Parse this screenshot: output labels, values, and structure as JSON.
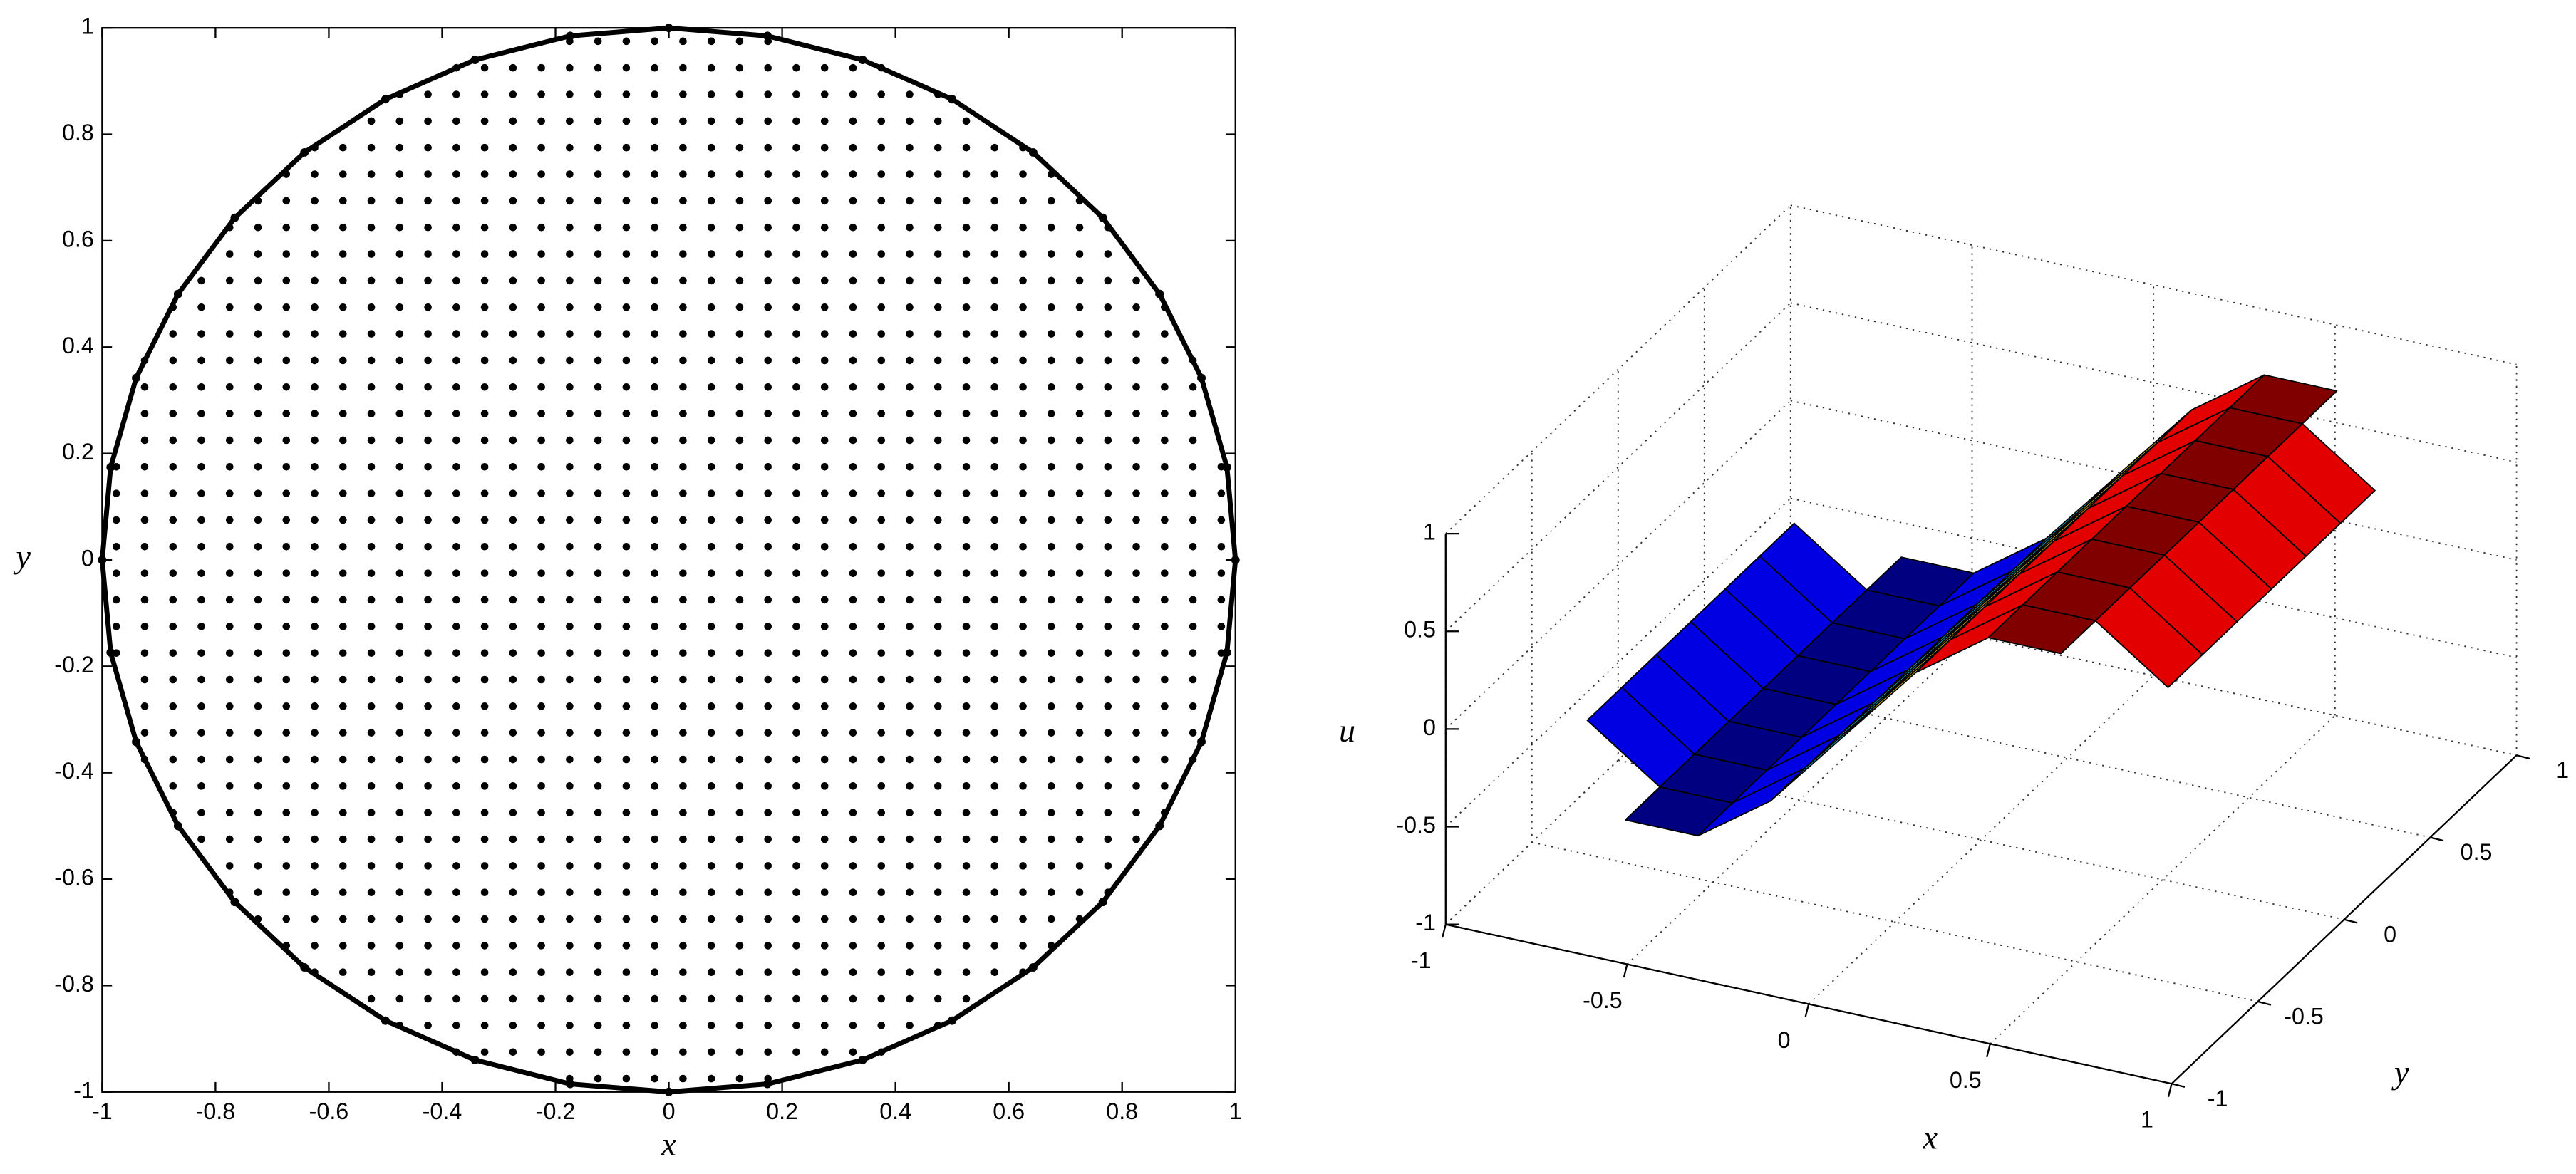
{
  "chart_data": [
    {
      "type": "scatter",
      "x_label": "x",
      "y_label": "y",
      "color": "#000000",
      "xlim": [
        -1,
        1
      ],
      "ylim": [
        -1,
        1
      ],
      "xticks": [
        -1,
        -0.8,
        -0.6,
        -0.4,
        -0.2,
        0,
        0.2,
        0.4,
        0.6,
        0.8,
        1
      ],
      "yticks": [
        -1,
        -0.8,
        -0.6,
        -0.4,
        -0.2,
        0,
        0.2,
        0.4,
        0.6,
        0.8,
        1
      ],
      "clip_radius": 1,
      "grid_points": {
        "x": [
          -0.975,
          -0.925,
          -0.875,
          -0.825,
          -0.775,
          -0.725,
          -0.675,
          -0.625,
          -0.575,
          -0.525,
          -0.475,
          -0.425,
          -0.375,
          -0.325,
          -0.275,
          -0.225,
          -0.175,
          -0.125,
          -0.075,
          -0.025,
          0.025,
          0.075,
          0.125,
          0.175,
          0.225,
          0.275,
          0.325,
          0.375,
          0.425,
          0.475,
          0.525,
          0.575,
          0.625,
          0.675,
          0.725,
          0.775,
          0.825,
          0.875,
          0.925,
          0.975
        ],
        "y": [
          -0.975,
          -0.925,
          -0.875,
          -0.825,
          -0.775,
          -0.725,
          -0.675,
          -0.625,
          -0.575,
          -0.525,
          -0.475,
          -0.425,
          -0.375,
          -0.325,
          -0.275,
          -0.225,
          -0.175,
          -0.125,
          -0.075,
          -0.025,
          0.025,
          0.075,
          0.125,
          0.175,
          0.225,
          0.275,
          0.325,
          0.375,
          0.425,
          0.475,
          0.525,
          0.575,
          0.625,
          0.675,
          0.725,
          0.775,
          0.825,
          0.875,
          0.925,
          0.975
        ]
      },
      "boundary": {
        "x": [
          1,
          0.985,
          0.94,
          0.866,
          0.766,
          0.643,
          0.5,
          0.342,
          0.174,
          0,
          -0.174,
          -0.342,
          -0.5,
          -0.643,
          -0.766,
          -0.866,
          -0.94,
          -0.985,
          -1,
          -0.985,
          -0.94,
          -0.866,
          -0.766,
          -0.643,
          -0.5,
          -0.342,
          -0.174,
          0,
          0.174,
          0.342,
          0.5,
          0.643,
          0.766,
          0.866,
          0.94,
          0.985
        ],
        "y": [
          0,
          0.174,
          0.342,
          0.5,
          0.643,
          0.766,
          0.866,
          0.94,
          0.985,
          1,
          0.985,
          0.94,
          0.866,
          0.766,
          0.643,
          0.5,
          0.342,
          0.174,
          0,
          -0.174,
          -0.342,
          -0.5,
          -0.643,
          -0.766,
          -0.866,
          -0.94,
          -0.985,
          -1,
          -0.985,
          -0.94,
          -0.866,
          -0.766,
          -0.643,
          -0.5,
          -0.342,
          -0.174
        ]
      }
    },
    {
      "type": "surface",
      "x_label": "x",
      "y_label": "y",
      "z_label": "u",
      "colormap": "jet",
      "grid": true,
      "xlim": [
        -1,
        1
      ],
      "ylim": [
        -1,
        1
      ],
      "zlim": [
        -1,
        1
      ],
      "xticks": [
        -1,
        -0.5,
        0,
        0.5,
        1
      ],
      "yticks": [
        -1,
        -0.5,
        0,
        0.5,
        1
      ],
      "zticks": [
        -1,
        -0.5,
        0,
        0.5,
        1
      ],
      "x": [
        -1,
        -0.8,
        -0.6,
        -0.4,
        -0.2,
        0,
        0.2,
        0.4,
        0.6,
        0.8,
        1
      ],
      "y": [
        -1,
        -0.8,
        -0.6,
        -0.4,
        -0.2,
        0,
        0.2,
        0.4,
        0.6,
        0.8,
        1
      ],
      "z": [
        [
          null,
          null,
          null,
          null,
          null,
          0.2,
          null,
          null,
          null,
          null,
          null
        ],
        [
          null,
          null,
          -0.47,
          -0.47,
          -0.21,
          0.2,
          0.61,
          0.87,
          0.87,
          null,
          null
        ],
        [
          null,
          -0.21,
          -0.47,
          -0.47,
          -0.21,
          0.2,
          0.61,
          0.87,
          0.87,
          0.61,
          null
        ],
        [
          null,
          -0.21,
          -0.47,
          -0.47,
          -0.21,
          0.2,
          0.61,
          0.87,
          0.87,
          0.61,
          null
        ],
        [
          null,
          -0.21,
          -0.47,
          -0.47,
          -0.21,
          0.2,
          0.61,
          0.87,
          0.87,
          0.61,
          null
        ],
        [
          0.2,
          -0.21,
          -0.47,
          -0.47,
          -0.21,
          0.2,
          0.61,
          0.87,
          0.87,
          0.61,
          0.2
        ],
        [
          null,
          -0.21,
          -0.47,
          -0.47,
          -0.21,
          0.2,
          0.61,
          0.87,
          0.87,
          0.61,
          null
        ],
        [
          null,
          -0.21,
          -0.47,
          -0.47,
          -0.21,
          0.2,
          0.61,
          0.87,
          0.87,
          0.61,
          null
        ],
        [
          null,
          -0.21,
          -0.47,
          -0.47,
          -0.21,
          0.2,
          0.61,
          0.87,
          0.87,
          0.61,
          null
        ],
        [
          null,
          null,
          -0.47,
          -0.47,
          -0.21,
          0.2,
          0.61,
          0.87,
          0.87,
          null,
          null
        ],
        [
          null,
          null,
          null,
          null,
          null,
          0.2,
          null,
          null,
          null,
          null,
          null
        ]
      ]
    }
  ]
}
